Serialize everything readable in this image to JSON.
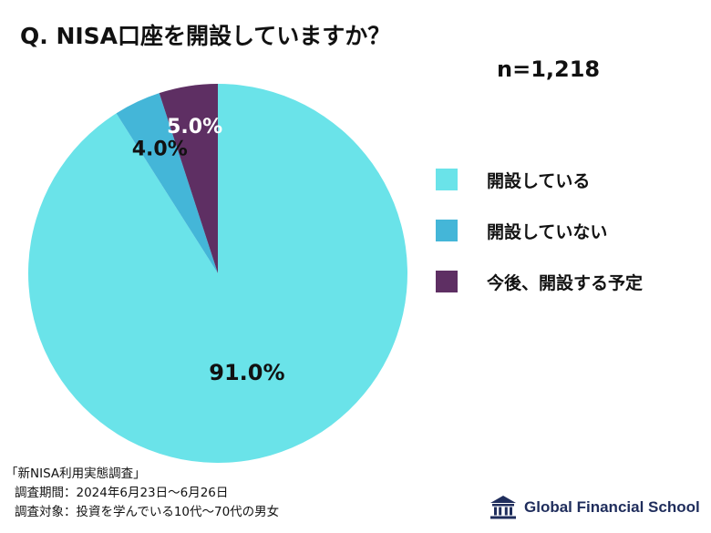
{
  "question": "Q. NISA口座を開設していますか？",
  "sample_size": "n=1,218",
  "colors": {
    "opened": "#6ae3e9",
    "not_opened": "#44b6d8",
    "planned": "#5e2f63",
    "logo": "#1f2d5c"
  },
  "chart_data": {
    "type": "pie",
    "title": "Q. NISA口座を開設していますか？",
    "slices": [
      {
        "label": "開設している",
        "value": 91.0,
        "display": "91.0%",
        "color": "#6ae3e9"
      },
      {
        "label": "開設していない",
        "value": 4.0,
        "display": "4.0%",
        "color": "#44b6d8"
      },
      {
        "label": "今後、開設する予定",
        "value": 5.0,
        "display": "5.0%",
        "color": "#5e2f63"
      }
    ],
    "legend_position": "right"
  },
  "legend": [
    {
      "label": "開設している",
      "color": "#6ae3e9"
    },
    {
      "label": "開設していない",
      "color": "#44b6d8"
    },
    {
      "label": "今後、開設する予定",
      "color": "#5e2f63"
    }
  ],
  "survey": {
    "title": "「新NISA利用実態調査」",
    "period": "調査期間：2024年6月23日～6月26日",
    "target": "調査対象：投資を学んでいる10代～70代の男女"
  },
  "logo": {
    "text": "Global Financial School",
    "icon": "school-building-icon"
  }
}
